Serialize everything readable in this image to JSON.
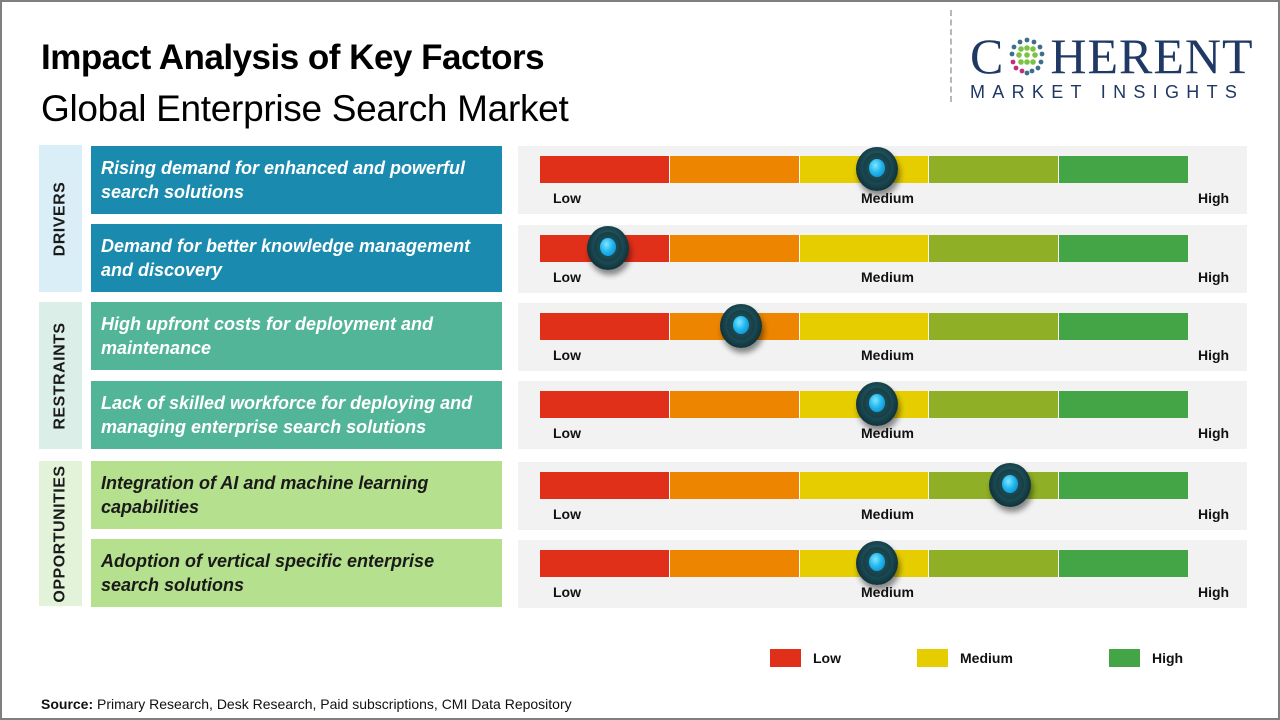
{
  "header": {
    "title": "Impact Analysis of Key Factors",
    "subtitle": "Global Enterprise Search Market"
  },
  "logo": {
    "name_left": "C",
    "name_right": "HERENT",
    "tagline": "MARKET INSIGHTS",
    "icon": "dotted-globe-icon"
  },
  "categories": [
    {
      "label": "DRIVERS",
      "color": "#daeef8"
    },
    {
      "label": "RESTRAINTS",
      "color": "#dceee8"
    },
    {
      "label": "OPPORTUNITIES",
      "color": "#e2f3da"
    }
  ],
  "gauge_labels": {
    "low": "Low",
    "medium": "Medium",
    "high": "High"
  },
  "segment_colors": [
    "#e1301a",
    "#ed8500",
    "#e6cd00",
    "#8fb026",
    "#44a546"
  ],
  "factors": [
    {
      "category": "DRIVERS",
      "text": "Rising demand for enhanced and powerful search solutions",
      "impact": "Medium",
      "position_pct": 52,
      "color": "#1a8aae"
    },
    {
      "category": "DRIVERS",
      "text": "Demand for better knowledge management and discovery",
      "impact": "Low",
      "position_pct": 10.5,
      "color": "#1a8aae"
    },
    {
      "category": "RESTRAINTS",
      "text": "High upfront costs for deployment and maintenance",
      "impact": "Low-Medium",
      "position_pct": 31,
      "color": "#53b597"
    },
    {
      "category": "RESTRAINTS",
      "text": "Lack of skilled workforce for deploying and managing enterprise search solutions",
      "impact": "Medium",
      "position_pct": 52,
      "color": "#53b597"
    },
    {
      "category": "OPPORTUNITIES",
      "text": "Integration of AI and machine learning capabilities",
      "impact": "Medium-High",
      "position_pct": 72.5,
      "color": "#b5e08d"
    },
    {
      "category": "OPPORTUNITIES",
      "text": "Adoption of vertical specific enterprise search solutions",
      "impact": "Medium",
      "position_pct": 52,
      "color": "#b5e08d"
    }
  ],
  "legend": [
    {
      "label": "Low",
      "color": "#e1301a"
    },
    {
      "label": "Medium",
      "color": "#e6cd00"
    },
    {
      "label": "High",
      "color": "#44a546"
    }
  ],
  "source": {
    "label": "Source:",
    "text": " Primary Research, Desk Research, Paid subscriptions, CMI Data Repository"
  },
  "chart_data": {
    "type": "table",
    "title": "Impact Analysis of Key Factors",
    "subtitle": "Global Enterprise Search Market",
    "scale": [
      "Low",
      "Medium",
      "High"
    ],
    "scale_segments": 5,
    "rows": [
      {
        "category": "Drivers",
        "factor": "Rising demand for enhanced and powerful search solutions",
        "impact_value": 0.52,
        "impact_level": "Medium"
      },
      {
        "category": "Drivers",
        "factor": "Demand for better knowledge management and discovery",
        "impact_value": 0.105,
        "impact_level": "Low"
      },
      {
        "category": "Restraints",
        "factor": "High upfront costs for deployment and maintenance",
        "impact_value": 0.31,
        "impact_level": "Low-Medium"
      },
      {
        "category": "Restraints",
        "factor": "Lack of skilled workforce for deploying and managing enterprise search solutions",
        "impact_value": 0.52,
        "impact_level": "Medium"
      },
      {
        "category": "Opportunities",
        "factor": "Integration of AI and machine learning capabilities",
        "impact_value": 0.725,
        "impact_level": "Medium-High"
      },
      {
        "category": "Opportunities",
        "factor": "Adoption of vertical specific enterprise search solutions",
        "impact_value": 0.52,
        "impact_level": "Medium"
      }
    ],
    "legend": [
      "Low",
      "Medium",
      "High"
    ],
    "legend_position": "bottom-right"
  }
}
